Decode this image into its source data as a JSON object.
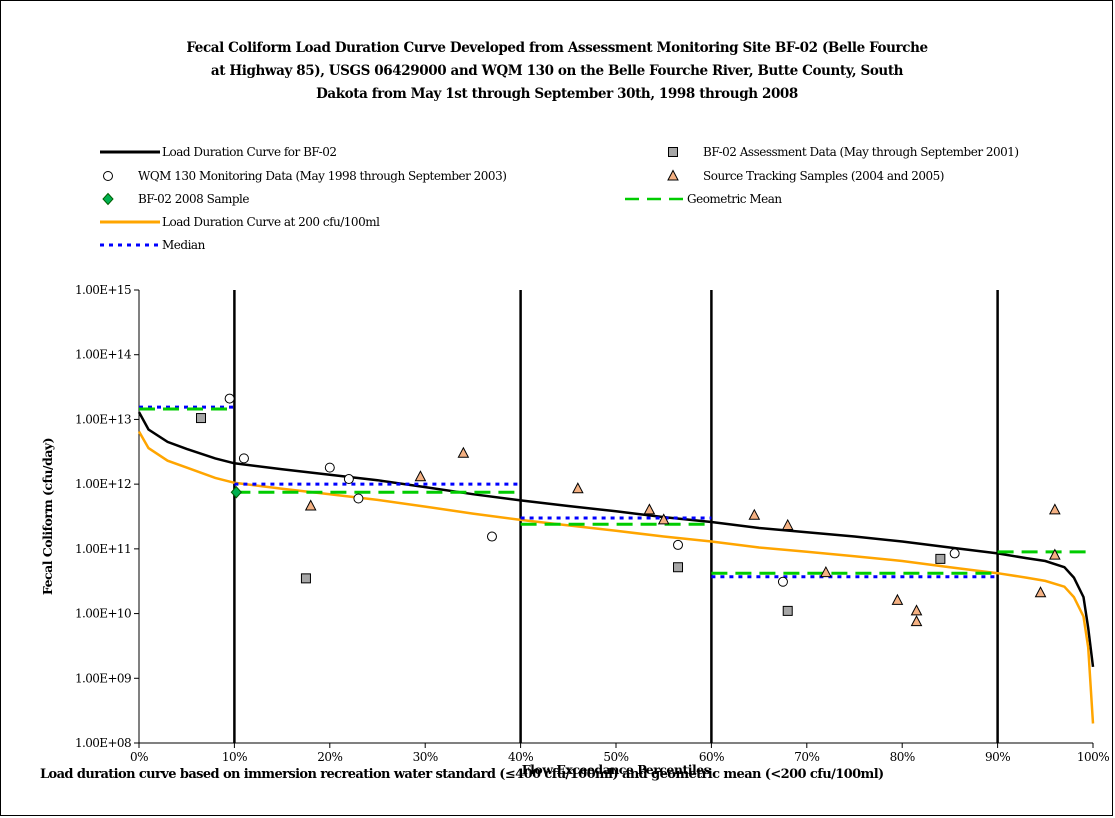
{
  "chart_data": {
    "type": "scatter",
    "title_lines": [
      "Fecal Coliform Load Duration Curve Developed from Assessment Monitoring Site BF-02 (Belle Fourche",
      "at Highway 85), USGS 06429000 and WQM 130 on the Belle Fourche River, Butte County, South",
      "Dakota from May 1st through September 30th, 1998 through 2008"
    ],
    "xlabel": "Flow Exceedance Percentiles",
    "ylabel": "Fecal Coliform (cfu/day)",
    "xlim": [
      0,
      100
    ],
    "ylim": [
      100000000,
      1000000000000000
    ],
    "yscale": "log",
    "x_ticks": [
      "0%",
      "10%",
      "20%",
      "30%",
      "40%",
      "50%",
      "60%",
      "70%",
      "80%",
      "90%",
      "100%"
    ],
    "y_ticks": [
      "1.00E+08",
      "1.00E+09",
      "1.00E+10",
      "1.00E+11",
      "1.00E+12",
      "1.00E+13",
      "1.00E+14",
      "1.00E+15"
    ],
    "zone_dividers": [
      10,
      40,
      60,
      90
    ],
    "legend": [
      {
        "label": "Load Duration Curve for BF-02",
        "kind": "line",
        "color": "#000000"
      },
      {
        "label": "BF-02 Assessment Data (May through September 2001)",
        "kind": "square",
        "color": "#a6a6a6"
      },
      {
        "label": "WQM 130 Monitoring Data (May 1998 through September 2003)",
        "kind": "circle",
        "color": "#ffffff"
      },
      {
        "label": "Source Tracking Samples (2004 and 2005)",
        "kind": "triangle",
        "color": "#f4b183"
      },
      {
        "label": "BF-02 2008 Sample",
        "kind": "diamond",
        "color": "#00b050"
      },
      {
        "label": "Geometric Mean",
        "kind": "dash",
        "color": "#00cc00"
      },
      {
        "label": "Load Duration Curve at 200 cfu/100ml",
        "kind": "line",
        "color": "#ffa500"
      },
      {
        "label": "Median",
        "kind": "dot",
        "color": "#0000ff"
      }
    ],
    "series": [
      {
        "name": "Load Duration Curve for BF-02",
        "kind": "line",
        "color": "#000000",
        "points": [
          [
            0,
            13000000000000.0
          ],
          [
            1,
            7000000000000.0
          ],
          [
            3,
            4500000000000.0
          ],
          [
            5,
            3500000000000.0
          ],
          [
            8,
            2500000000000.0
          ],
          [
            10,
            2100000000000.0
          ],
          [
            15,
            1700000000000.0
          ],
          [
            20,
            1400000000000.0
          ],
          [
            25,
            1150000000000.0
          ],
          [
            30,
            900000000000.0
          ],
          [
            35,
            700000000000.0
          ],
          [
            40,
            560000000000.0
          ],
          [
            45,
            460000000000.0
          ],
          [
            50,
            380000000000.0
          ],
          [
            55,
            310000000000.0
          ],
          [
            60,
            260000000000.0
          ],
          [
            65,
            210000000000.0
          ],
          [
            70,
            180000000000.0
          ],
          [
            75,
            155000000000.0
          ],
          [
            80,
            130000000000.0
          ],
          [
            85,
            105000000000.0
          ],
          [
            90,
            85000000000.0
          ],
          [
            93,
            72000000000.0
          ],
          [
            95,
            65000000000.0
          ],
          [
            97,
            52000000000.0
          ],
          [
            98,
            36000000000.0
          ],
          [
            99,
            18000000000.0
          ],
          [
            99.5,
            6000000000.0
          ],
          [
            100,
            1500000000.0
          ]
        ]
      },
      {
        "name": "Load Duration Curve at 200 cfu/100ml",
        "kind": "line",
        "color": "#ffa500",
        "points": [
          [
            0,
            6500000000000.0
          ],
          [
            1,
            3600000000000.0
          ],
          [
            3,
            2300000000000.0
          ],
          [
            5,
            1800000000000.0
          ],
          [
            8,
            1250000000000.0
          ],
          [
            10,
            1050000000000.0
          ],
          [
            15,
            850000000000.0
          ],
          [
            20,
            700000000000.0
          ],
          [
            25,
            570000000000.0
          ],
          [
            30,
            450000000000.0
          ],
          [
            35,
            350000000000.0
          ],
          [
            40,
            280000000000.0
          ],
          [
            45,
            230000000000.0
          ],
          [
            50,
            190000000000.0
          ],
          [
            55,
            155000000000.0
          ],
          [
            60,
            130000000000.0
          ],
          [
            65,
            105000000000.0
          ],
          [
            70,
            90000000000.0
          ],
          [
            75,
            77000000000.0
          ],
          [
            80,
            65000000000.0
          ],
          [
            85,
            52000000000.0
          ],
          [
            90,
            42000000000.0
          ],
          [
            93,
            36000000000.0
          ],
          [
            95,
            32000000000.0
          ],
          [
            97,
            26000000000.0
          ],
          [
            98,
            18000000000.0
          ],
          [
            99,
            9000000000.0
          ],
          [
            99.5,
            3000000000.0
          ],
          [
            100,
            200000000.0
          ]
        ]
      },
      {
        "name": "BF-02 Assessment Data (May through September 2001)",
        "kind": "square",
        "color": "#a6a6a6",
        "points": [
          [
            6.5,
            10500000000000.0
          ],
          [
            17.5,
            35000000000.0
          ],
          [
            56.5,
            52000000000.0
          ],
          [
            68,
            11000000000.0
          ],
          [
            84,
            70000000000.0
          ]
        ]
      },
      {
        "name": "WQM 130 Monitoring Data (May 1998 through September 2003)",
        "kind": "circle",
        "color": "#ffffff",
        "points": [
          [
            9.5,
            21000000000000.0
          ],
          [
            11,
            2500000000000.0
          ],
          [
            20,
            1800000000000.0
          ],
          [
            22,
            1200000000000.0
          ],
          [
            23,
            600000000000.0
          ],
          [
            37,
            155000000000.0
          ],
          [
            56.5,
            115000000000.0
          ],
          [
            67.5,
            31000000000.0
          ],
          [
            85.5,
            85000000000.0
          ]
        ]
      },
      {
        "name": "Source Tracking Samples (2004 and 2005)",
        "kind": "triangle",
        "color": "#f4b183",
        "points": [
          [
            18,
            460000000000.0
          ],
          [
            29.5,
            1300000000000.0
          ],
          [
            34,
            3000000000000.0
          ],
          [
            46,
            850000000000.0
          ],
          [
            53.5,
            400000000000.0
          ],
          [
            55,
            280000000000.0
          ],
          [
            64.5,
            330000000000.0
          ],
          [
            68,
            230000000000.0
          ],
          [
            72,
            43000000000.0
          ],
          [
            79.5,
            16000000000.0
          ],
          [
            81.5,
            11000000000.0
          ],
          [
            81.5,
            7500000000.0
          ],
          [
            94.5,
            21000000000.0
          ],
          [
            96,
            400000000000.0
          ],
          [
            96,
            80000000000.0
          ]
        ]
      },
      {
        "name": "BF-02 2008 Sample",
        "kind": "diamond",
        "color": "#00b050",
        "points": [
          [
            10.2,
            750000000000.0
          ]
        ]
      },
      {
        "name": "Geometric Mean",
        "kind": "dash",
        "color": "#00cc00",
        "segments": [
          [
            0,
            10,
            14500000000000.0
          ],
          [
            10,
            40,
            750000000000.0
          ],
          [
            40,
            60,
            240000000000.0
          ],
          [
            60,
            90,
            42000000000.0
          ],
          [
            90,
            100,
            90000000000.0
          ]
        ]
      },
      {
        "name": "Median",
        "kind": "dot",
        "color": "#0000ff",
        "segments": [
          [
            0,
            10,
            15500000000000.0
          ],
          [
            10,
            40,
            1000000000000.0
          ],
          [
            40,
            60,
            300000000000.0
          ],
          [
            60,
            90,
            37000000000.0
          ]
        ]
      }
    ]
  },
  "footnote": "Load duration curve based on immersion recreation water standard (≤400 cfu/100ml) and geometric mean (<200 cfu/100ml)"
}
